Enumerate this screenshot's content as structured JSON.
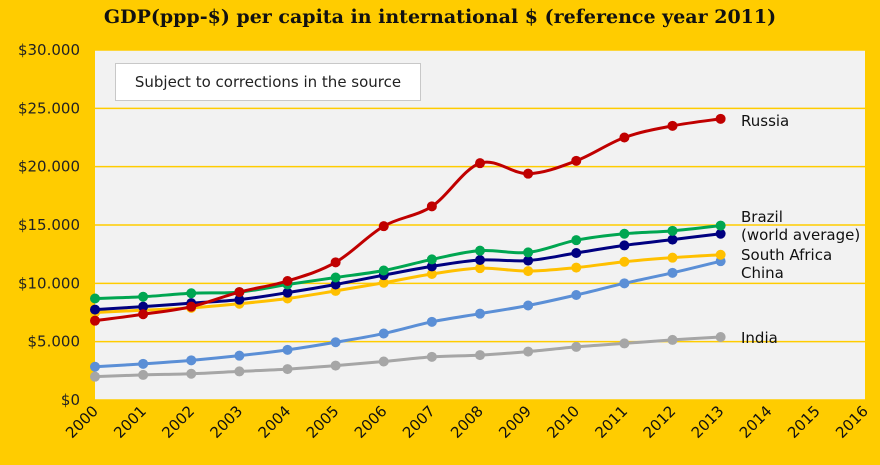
{
  "chart_data": {
    "type": "line",
    "title": "GDP(ppp-$) per capita in international  $ (reference year 2011)",
    "annotation": "Subject to corrections  in the source",
    "x": [
      2000,
      2001,
      2002,
      2003,
      2004,
      2005,
      2006,
      2007,
      2008,
      2009,
      2010,
      2011,
      2012,
      2013
    ],
    "x_ticks": [
      "2000",
      "2001",
      "2002",
      "2003",
      "2004",
      "2005",
      "2006",
      "2007",
      "2008",
      "2009",
      "2010",
      "2011",
      "2012",
      "2013",
      "2014",
      "2015",
      "2016"
    ],
    "xlim": [
      2000,
      2016
    ],
    "ylim": [
      0,
      30000
    ],
    "y_ticks": [
      "$0",
      "$5.000",
      "$10.000",
      "$15.000",
      "$20.000",
      "$25.000",
      "$30.000"
    ],
    "y_tick_values": [
      0,
      5000,
      10000,
      15000,
      20000,
      25000,
      30000
    ],
    "grid": true,
    "plot_background": "#F2F2F2",
    "gridline_color": "#FFCC00",
    "series": [
      {
        "key": "india",
        "name": "India",
        "color": "#A6A6A6",
        "values": [
          2000,
          2150,
          2250,
          2450,
          2650,
          2950,
          3300,
          3700,
          3850,
          4150,
          4550,
          4850,
          5150,
          5400
        ]
      },
      {
        "key": "china",
        "name": "China",
        "color": "#5B8FD6",
        "values": [
          2850,
          3100,
          3400,
          3800,
          4300,
          4950,
          5700,
          6700,
          7400,
          8100,
          9000,
          10000,
          10900,
          11900
        ]
      },
      {
        "key": "south_africa",
        "name": "South Africa",
        "color": "#FFC000",
        "values": [
          7500,
          7700,
          7900,
          8250,
          8700,
          9350,
          10050,
          10800,
          11300,
          11050,
          11350,
          11850,
          12200,
          12450
        ]
      },
      {
        "key": "world",
        "name": "(world average)",
        "color": "#000080",
        "values": [
          7750,
          8000,
          8300,
          8600,
          9200,
          9900,
          10700,
          11450,
          12000,
          11950,
          12600,
          13250,
          13750,
          14250
        ]
      },
      {
        "key": "brazil",
        "name": "Brazil",
        "color": "#00A651",
        "values": [
          8700,
          8850,
          9150,
          9250,
          9900,
          10500,
          11100,
          12050,
          12800,
          12650,
          13700,
          14250,
          14500,
          14950
        ]
      },
      {
        "key": "russia",
        "name": "Russia",
        "color": "#C00000",
        "values": [
          6800,
          7350,
          8000,
          9250,
          10200,
          11800,
          14900,
          16600,
          20300,
          19400,
          20500,
          22500,
          23500,
          24100
        ]
      }
    ]
  }
}
